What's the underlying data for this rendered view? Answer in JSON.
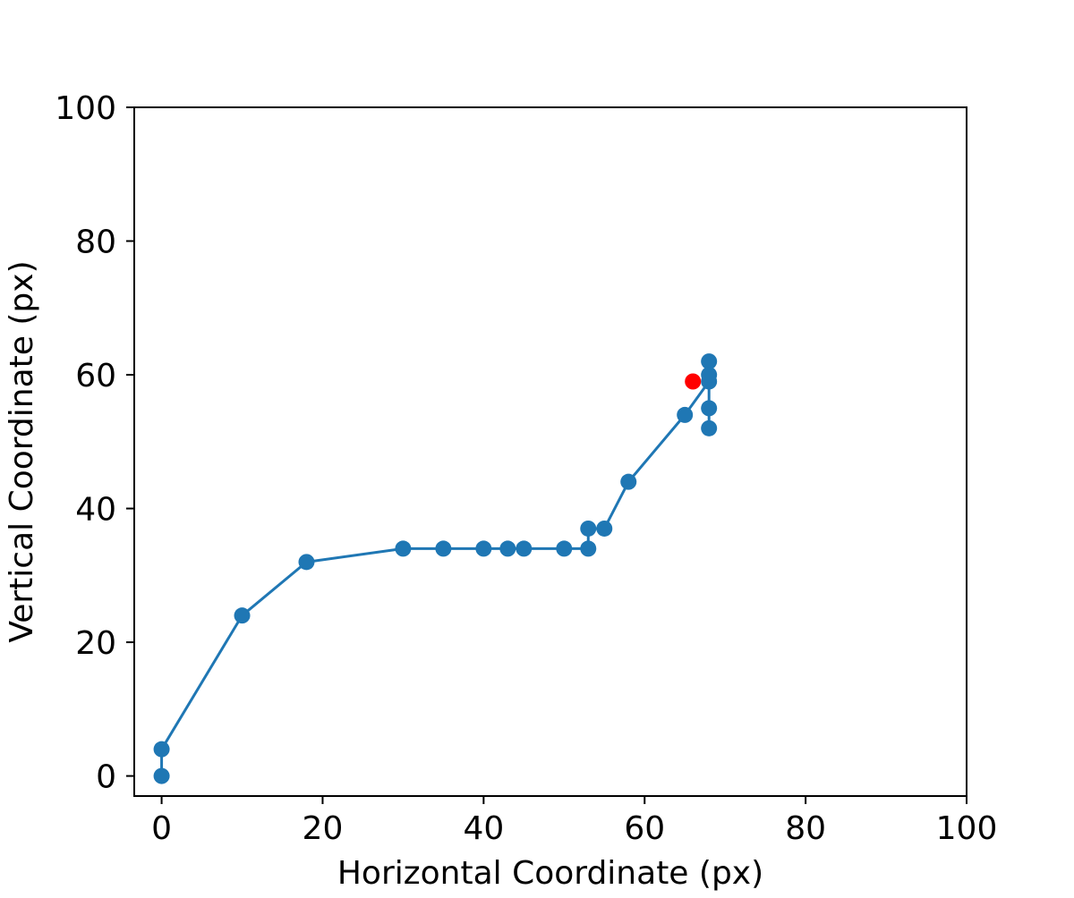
{
  "chart_data": {
    "type": "line",
    "title": "",
    "xlabel": "Horizontal Coordinate (px)",
    "ylabel": "Vertical Coordinate (px)",
    "xlim": [
      -3.4,
      100
    ],
    "ylim": [
      -3,
      100
    ],
    "x_ticks": [
      "0",
      "20",
      "40",
      "60",
      "80",
      "100"
    ],
    "y_ticks": [
      "0",
      "20",
      "40",
      "60",
      "80",
      "100"
    ],
    "grid": false,
    "series": [
      {
        "color": "#1f77b4",
        "points": [
          [
            0,
            0
          ],
          [
            0,
            4
          ],
          [
            10,
            24
          ],
          [
            18,
            32
          ],
          [
            30,
            34
          ],
          [
            35,
            34
          ],
          [
            40,
            34
          ],
          [
            43,
            34
          ],
          [
            45,
            34
          ],
          [
            50,
            34
          ],
          [
            53,
            34
          ],
          [
            53,
            37
          ],
          [
            55,
            37
          ],
          [
            58,
            44
          ],
          [
            65,
            54
          ],
          [
            68,
            59
          ],
          [
            68,
            62
          ],
          [
            68,
            60
          ],
          [
            68,
            55
          ],
          [
            68,
            52
          ]
        ]
      }
    ],
    "highlight_point": {
      "color": "#ff0000",
      "x": 66,
      "y": 59
    }
  }
}
